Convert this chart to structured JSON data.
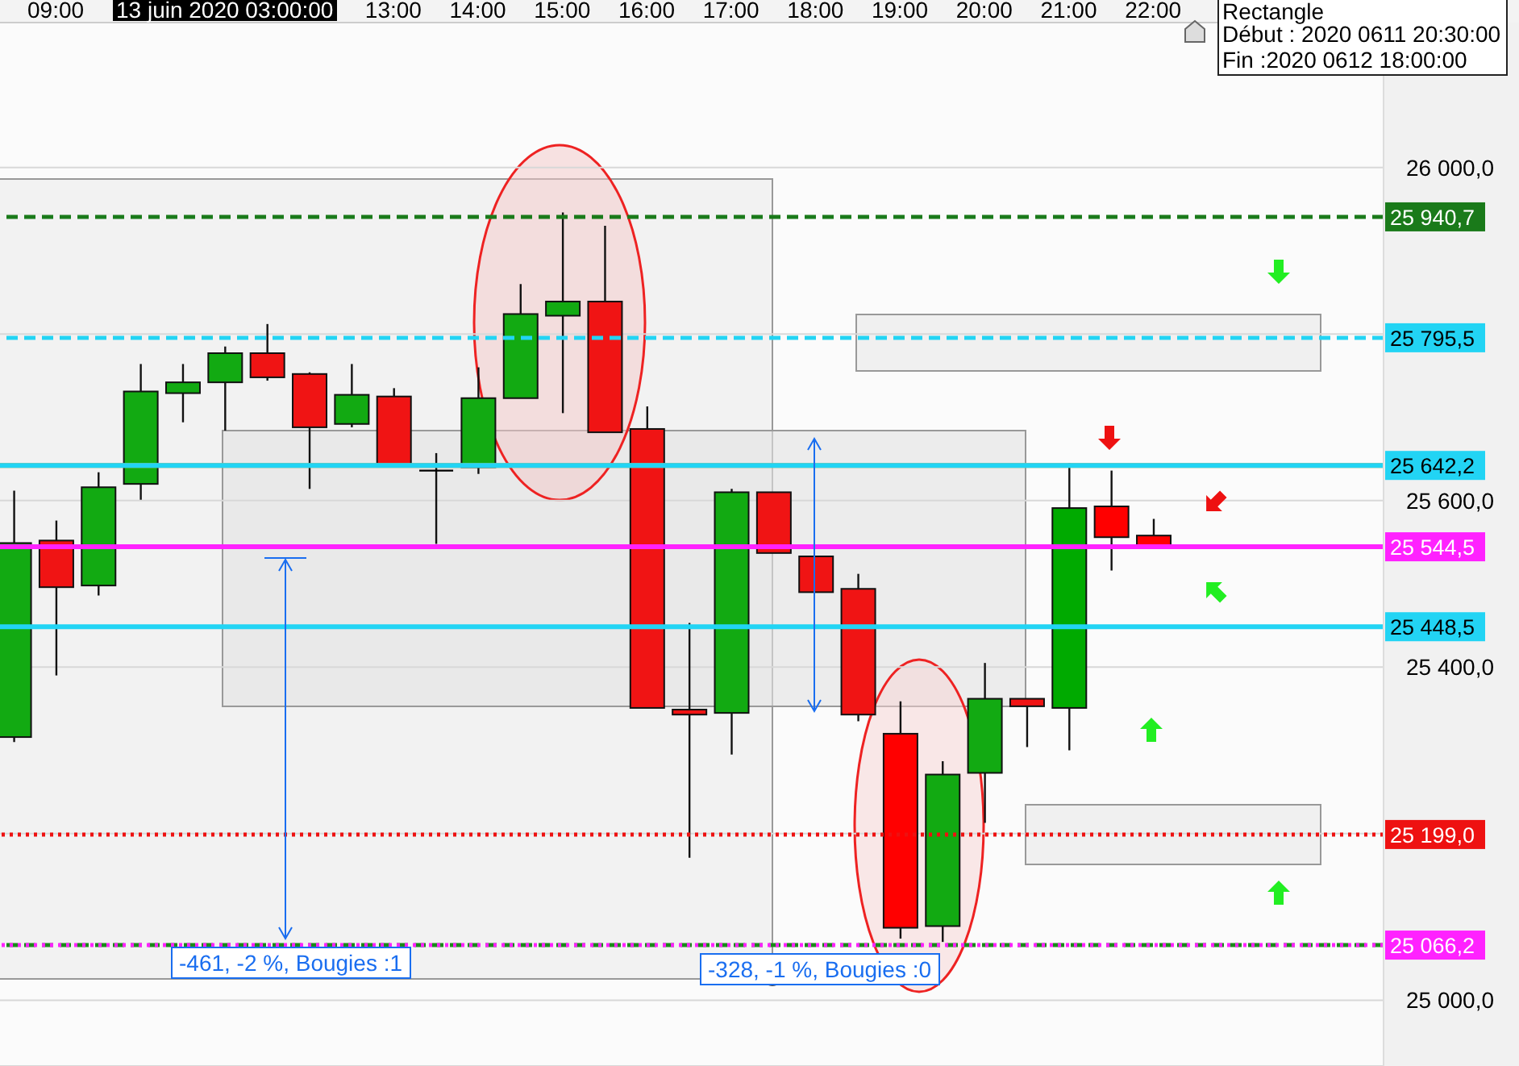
{
  "chart_data": {
    "type": "candlestick",
    "x": [
      8.5,
      9,
      9.5,
      10,
      10.5,
      11,
      11.5,
      12,
      12.5,
      13,
      13.5,
      14,
      14.5,
      15,
      15.5,
      16,
      16.5,
      17,
      17.5,
      18,
      18.5,
      19,
      19.5,
      20,
      20.5,
      21,
      21.5,
      22
    ],
    "ohlc": [
      [
        25316,
        25612,
        25310,
        25549
      ],
      [
        25552,
        25576,
        25390,
        25496
      ],
      [
        25498,
        25634,
        25486,
        25616
      ],
      [
        25620,
        25764,
        25601,
        25731
      ],
      [
        25729,
        25764,
        25694,
        25742
      ],
      [
        25742,
        25785,
        25684,
        25777
      ],
      [
        25777,
        25812,
        25744,
        25748
      ],
      [
        25752,
        25754,
        25614,
        25688
      ],
      [
        25692,
        25764,
        25688,
        25727
      ],
      [
        25725,
        25735,
        25640,
        25641
      ],
      [
        25636,
        25657,
        25548,
        25636
      ],
      [
        25640,
        25760,
        25632,
        25723
      ],
      [
        25723,
        25860,
        25723,
        25824
      ],
      [
        25822,
        25946,
        25705,
        25839
      ],
      [
        25839,
        25930,
        25682,
        25682
      ],
      [
        25686,
        25713,
        25351,
        25351
      ],
      [
        25349,
        25453,
        25171,
        25343
      ],
      [
        25345,
        25614,
        25295,
        25610
      ],
      [
        25610,
        25610,
        25537,
        25537
      ],
      [
        25533,
        25533,
        25490,
        25490
      ],
      [
        25494,
        25512,
        25335,
        25343
      ],
      [
        25320,
        25359,
        25074,
        25087
      ],
      [
        25089,
        25287,
        25070,
        25271
      ],
      [
        25273,
        25405,
        25213,
        25362
      ],
      [
        25362,
        25362,
        25304,
        25353
      ],
      [
        25351,
        25645,
        25300,
        25591
      ],
      [
        25593,
        25636,
        25516,
        25556
      ],
      [
        25558,
        25578,
        25545,
        25545
      ]
    ],
    "colors": [
      "#12aa12",
      "#f01414",
      "#12aa12",
      "#12aa12",
      "#12aa12",
      "#12aa12",
      "#f01414",
      "#f01414",
      "#12aa12",
      "#f01414",
      "#000000",
      "#12aa12",
      "#12aa12",
      "#12aa12",
      "#f01414",
      "#f01414",
      "#f01414",
      "#12aa12",
      "#f01414",
      "#f01414",
      "#f01414",
      "#ff0000",
      "#12aa12",
      "#12aa12",
      "#f01414",
      "#00aa00",
      "#ff0000",
      "#ff0000"
    ],
    "xlim": [
      8.34,
      24.73
    ],
    "xticks": [
      {
        "value": 9,
        "label": "09:00"
      },
      {
        "value": 13,
        "label": "13:00"
      },
      {
        "value": 14,
        "label": "14:00"
      },
      {
        "value": 15,
        "label": "15:00"
      },
      {
        "value": 16,
        "label": "16:00"
      },
      {
        "value": 17,
        "label": "17:00"
      },
      {
        "value": 18,
        "label": "18:00"
      },
      {
        "value": 19,
        "label": "19:00"
      },
      {
        "value": 20,
        "label": "20:00"
      },
      {
        "value": 21,
        "label": "21:00"
      },
      {
        "value": 22,
        "label": "22:00"
      }
    ],
    "ylim": [
      24921,
      26174
    ],
    "yticks": [
      {
        "value": 25000,
        "label": "25 000,0"
      },
      {
        "value": 25200,
        "label": null
      },
      {
        "value": 25400,
        "label": "25 400,0"
      },
      {
        "value": 25600,
        "label": "25 600,0"
      },
      {
        "value": 25800,
        "label": null
      },
      {
        "value": 26000,
        "label": "26 000,0"
      }
    ],
    "grid": "y",
    "ref_lines": [
      {
        "axis": "y",
        "value": 25940.7,
        "label": "25 940,7",
        "color": "#1a7a1a",
        "line_style": "dashed"
      },
      {
        "axis": "y",
        "value": 25795.5,
        "label": "25 795,5",
        "color": "#22d4f4",
        "line_style": "dashed"
      },
      {
        "axis": "y",
        "value": 25642.2,
        "label": null,
        "color": "#f0a020",
        "line_style": "solid"
      },
      {
        "axis": "y",
        "value": 25642.2,
        "label": "25 642,2",
        "color": "#22d4f4",
        "line_style": "solid"
      },
      {
        "axis": "y",
        "value": 25544.5,
        "label": "25 544,5",
        "color": "#ff22ff",
        "line_style": "solid"
      },
      {
        "axis": "y",
        "value": 25448.5,
        "label": "25 448,5",
        "color": "#22d4f4",
        "line_style": "solid"
      },
      {
        "axis": "y",
        "value": 25199.0,
        "label": "25 199,0",
        "color": "#ee1111",
        "line_style": "dotted"
      },
      {
        "axis": "y",
        "value": 25066.2,
        "label": null,
        "color": "#1a8a1a",
        "line_style": "dashed"
      },
      {
        "axis": "y",
        "value": 25066.2,
        "label": "25 066,2",
        "color": "#ff22ff",
        "line_style": "dotted"
      }
    ],
    "annotations": [
      "13 juin 2020 03:00:00",
      "Rectangle",
      "Début : 2020 0611 20:30:00",
      "Fin :2020 0612 18:00:00",
      "-461, -2 %, Bougies :1",
      "-328, -1 %, Bougies :0"
    ]
  }
}
